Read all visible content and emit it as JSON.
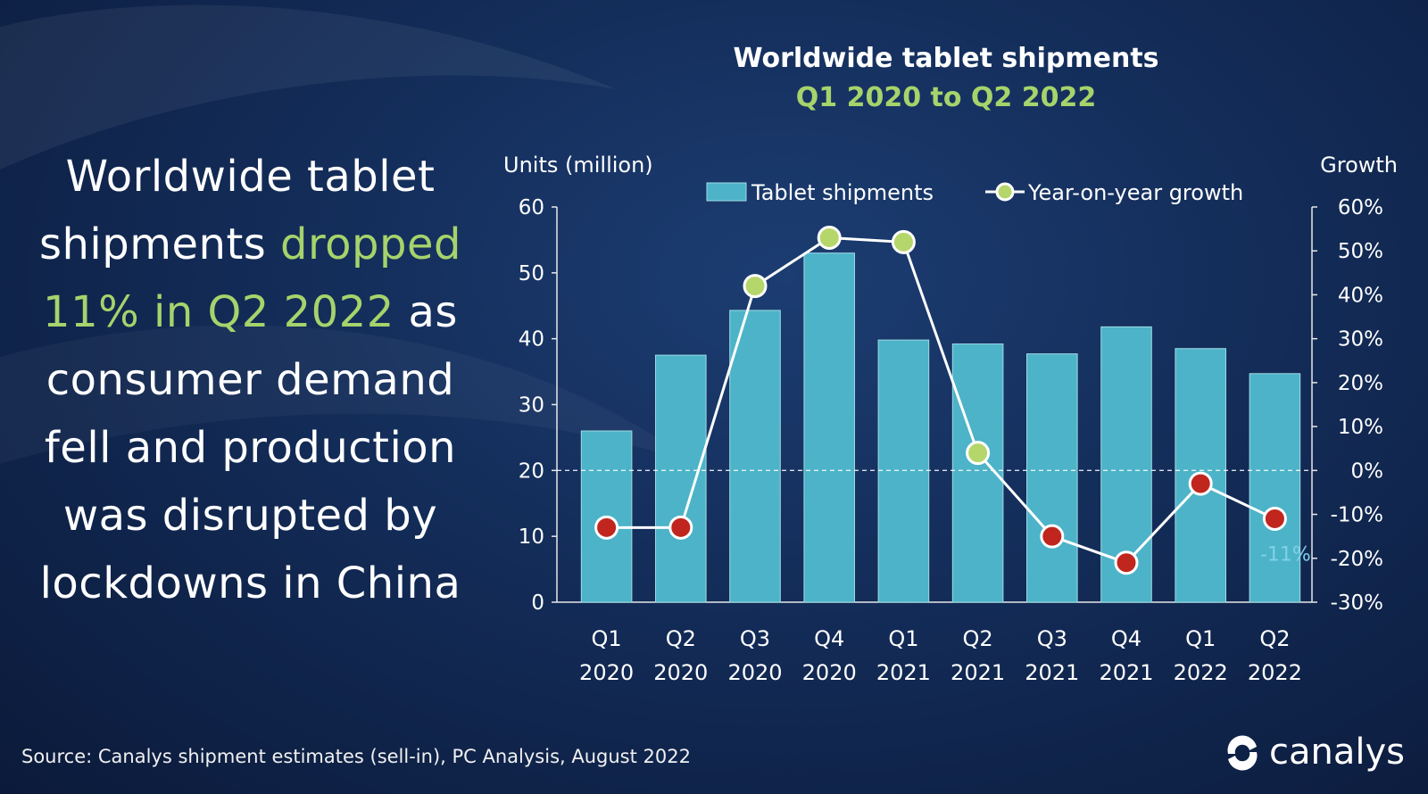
{
  "headline": {
    "part1": "Worldwide tablet shipments ",
    "highlight": "dropped 11% in Q2 2022",
    "part2": " as consumer demand fell and production was disrupted by lockdowns in China"
  },
  "source": "Source: Canalys shipment estimates (sell-in), PC Analysis, August 2022",
  "logo_text": "canalys",
  "colors": {
    "bar": "#4db3c8",
    "highlight_green": "#a6d36b",
    "marker_positive": "#b5d66b",
    "marker_negative": "#c0261e"
  },
  "chart_data": {
    "type": "bar",
    "title": "Worldwide tablet shipments",
    "subtitle": "Q1 2020 to Q2 2022",
    "ylabel_left": "Units (million)",
    "ylabel_right": "Growth",
    "ylim_left": [
      0,
      60
    ],
    "ylim_right": [
      -30,
      60
    ],
    "yticks_left": [
      "0",
      "10",
      "20",
      "30",
      "40",
      "50",
      "60"
    ],
    "yticks_right": [
      "-30%",
      "-20%",
      "-10%",
      "0%",
      "10%",
      "20%",
      "30%",
      "40%",
      "50%",
      "60%"
    ],
    "categories": [
      [
        "Q1",
        "2020"
      ],
      [
        "Q2",
        "2020"
      ],
      [
        "Q3",
        "2020"
      ],
      [
        "Q4",
        "2020"
      ],
      [
        "Q1",
        "2021"
      ],
      [
        "Q2",
        "2021"
      ],
      [
        "Q3",
        "2021"
      ],
      [
        "Q4",
        "2021"
      ],
      [
        "Q1",
        "2022"
      ],
      [
        "Q2",
        "2022"
      ]
    ],
    "series": [
      {
        "name": "Tablet shipments",
        "type": "bar",
        "axis": "left",
        "values": [
          26.0,
          37.5,
          44.3,
          53.0,
          39.8,
          39.2,
          37.7,
          41.8,
          38.5,
          34.7
        ]
      },
      {
        "name": "Year-on-year growth",
        "type": "line",
        "axis": "right",
        "values": [
          -13,
          -13,
          42,
          53,
          52,
          4,
          -15,
          -21,
          -3,
          -11
        ]
      }
    ],
    "annotation": "-11%",
    "legend_position": "top",
    "reference_line": "0% growth (dashed)"
  }
}
